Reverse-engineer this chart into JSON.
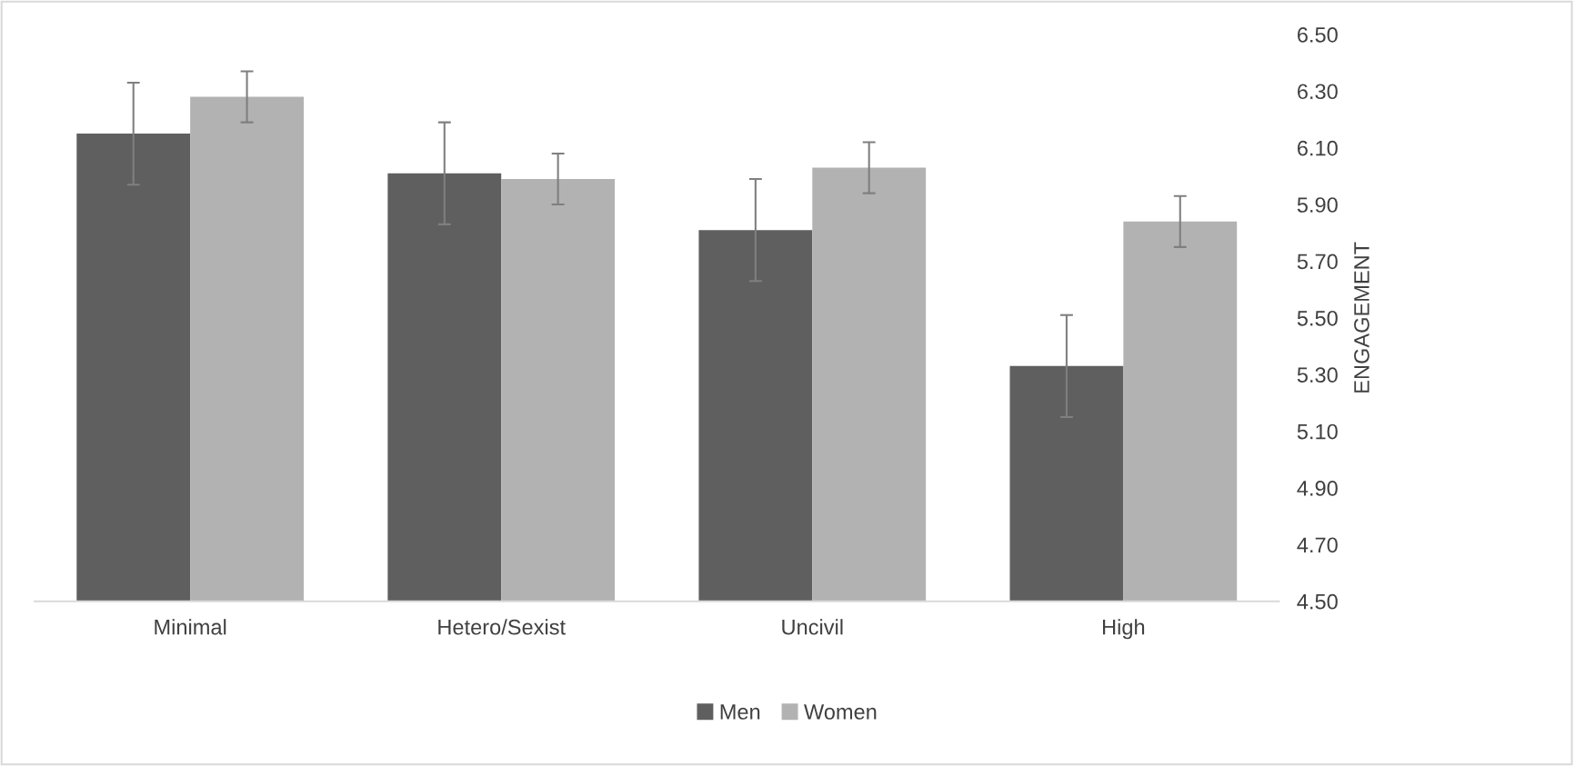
{
  "chart_data": {
    "type": "bar",
    "ylabel": "ENGAGEMENT",
    "categories": [
      "Minimal",
      "Hetero/Sexist",
      "Uncivil",
      "High"
    ],
    "series": [
      {
        "name": "Men",
        "color": "#5f5f5f",
        "values": [
          6.15,
          6.01,
          5.81,
          5.33
        ],
        "errors": [
          0.18,
          0.18,
          0.18,
          0.18
        ]
      },
      {
        "name": "Women",
        "color": "#b2b2b2",
        "values": [
          6.28,
          5.99,
          6.03,
          5.84
        ],
        "errors": [
          0.09,
          0.09,
          0.09,
          0.09
        ]
      }
    ],
    "ylim": [
      4.5,
      6.5
    ],
    "yticks": [
      {
        "value": 4.5,
        "label": "4.50"
      },
      {
        "value": 4.7,
        "label": "4.70"
      },
      {
        "value": 4.9,
        "label": "4.90"
      },
      {
        "value": 5.1,
        "label": "5.10"
      },
      {
        "value": 5.3,
        "label": "5.30"
      },
      {
        "value": 5.5,
        "label": "5.50"
      },
      {
        "value": 5.7,
        "label": "5.70"
      },
      {
        "value": 5.9,
        "label": "5.90"
      },
      {
        "value": 6.1,
        "label": "6.10"
      },
      {
        "value": 6.3,
        "label": "6.30"
      },
      {
        "value": 6.5,
        "label": "6.50"
      }
    ],
    "grid": false,
    "legend": "bottom"
  }
}
